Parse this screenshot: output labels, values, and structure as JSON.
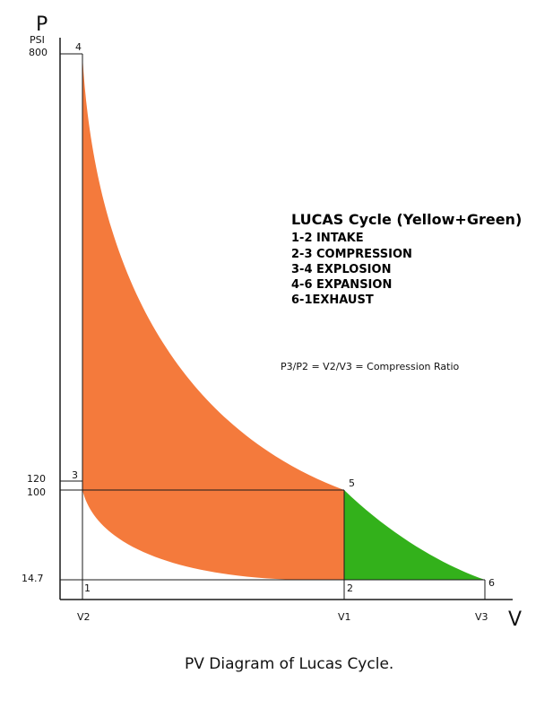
{
  "axes": {
    "y_letter": "P",
    "y_unit": "PSI",
    "x_letter": "V",
    "y_ticks": [
      "800",
      "120",
      "100",
      "14.7"
    ],
    "x_ticks": [
      "V2",
      "V1",
      "V3"
    ]
  },
  "points": {
    "p1": "1",
    "p2": "2",
    "p3": "3",
    "p4": "4",
    "p5": "5",
    "p6": "6"
  },
  "legend": {
    "title": "LUCAS Cycle (Yellow+Green)",
    "items": [
      "1-2 INTAKE",
      "2-3 COMPRESSION",
      "3-4 EXPLOSION",
      "4-6 EXPANSION",
      "6-1EXHAUST"
    ]
  },
  "formula": "P3/P2 = V2/V3 = Compression Ratio",
  "caption": "PV Diagram of Lucas Cycle.",
  "colors": {
    "orange_region": "#f47a3c",
    "green_region": "#33b11b",
    "lines": "#1a1a1a"
  }
}
